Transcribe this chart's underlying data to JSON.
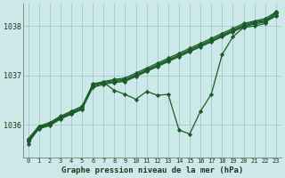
{
  "bg_color": "#cce8e8",
  "line_color": "#1a5c28",
  "grid_color": "#a0c8c8",
  "xlabel": "Graphe pression niveau de la mer (hPa)",
  "ylim": [
    1035.35,
    1038.45
  ],
  "xlim": [
    -0.5,
    23.5
  ],
  "yticks": [
    1036,
    1037,
    1038
  ],
  "series": [
    [
      1035.72,
      1035.98,
      1036.05,
      1036.18,
      1036.28,
      1036.38,
      1036.82,
      1036.88,
      1036.92,
      1036.95,
      1037.05,
      1037.15,
      1037.25,
      1037.35,
      1037.45,
      1037.55,
      1037.65,
      1037.75,
      1037.85,
      1037.95,
      1038.05,
      1038.1,
      1038.15,
      1038.28
    ],
    [
      1035.7,
      1035.96,
      1036.03,
      1036.16,
      1036.26,
      1036.36,
      1036.8,
      1036.86,
      1036.9,
      1036.92,
      1037.02,
      1037.12,
      1037.22,
      1037.32,
      1037.42,
      1037.52,
      1037.62,
      1037.72,
      1037.82,
      1037.92,
      1038.02,
      1038.08,
      1038.12,
      1038.25
    ],
    [
      1035.68,
      1035.94,
      1036.01,
      1036.14,
      1036.24,
      1036.34,
      1036.78,
      1036.84,
      1036.88,
      1036.9,
      1037.0,
      1037.1,
      1037.2,
      1037.3,
      1037.4,
      1037.5,
      1037.6,
      1037.7,
      1037.8,
      1037.9,
      1038.0,
      1038.06,
      1038.1,
      1038.22
    ],
    [
      1035.66,
      1035.92,
      1035.99,
      1036.12,
      1036.22,
      1036.32,
      1036.76,
      1036.82,
      1036.86,
      1036.88,
      1036.98,
      1037.08,
      1037.18,
      1037.28,
      1037.38,
      1037.48,
      1037.58,
      1037.68,
      1037.78,
      1037.88,
      1037.98,
      1038.04,
      1038.08,
      1038.2
    ],
    [
      1035.62,
      1035.95,
      1036.0,
      1036.14,
      1036.22,
      1036.32,
      1036.84,
      1036.86,
      1036.7,
      1036.62,
      1036.52,
      1036.68,
      1036.6,
      1036.62,
      1035.9,
      1035.82,
      1036.28,
      1036.62,
      1037.42,
      1037.78,
      1037.97,
      1038.0,
      1038.05,
      1038.3
    ]
  ]
}
